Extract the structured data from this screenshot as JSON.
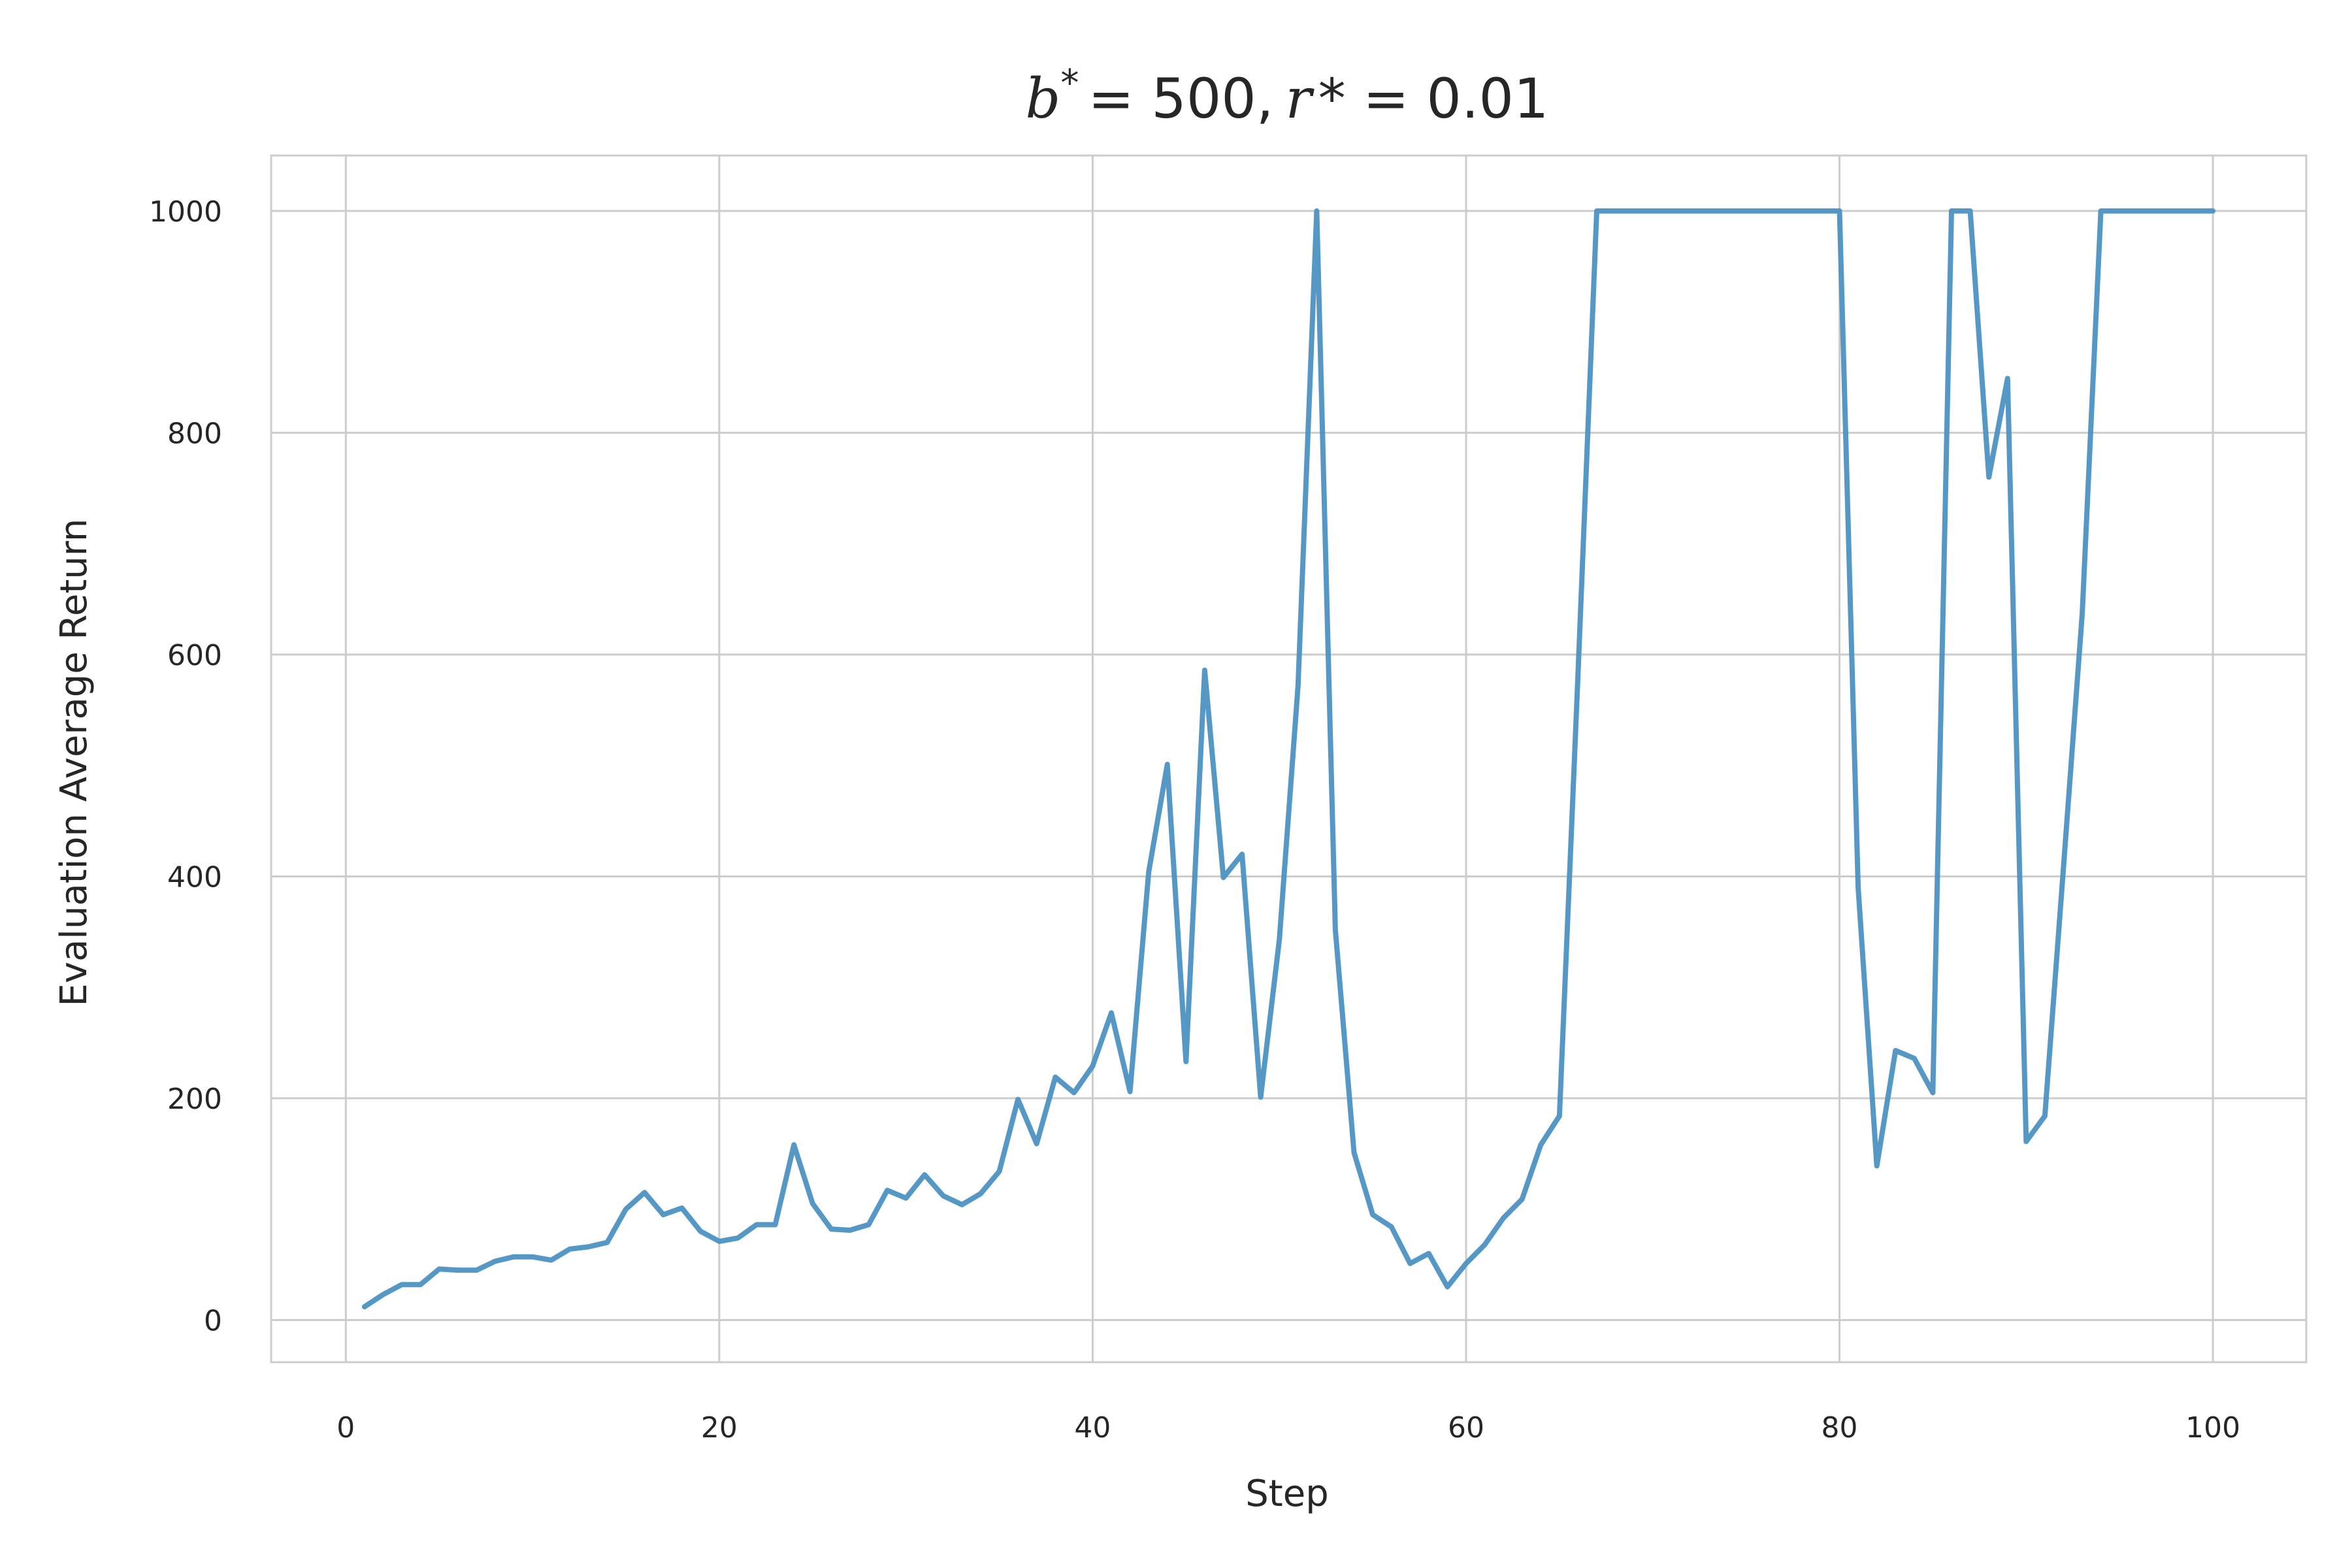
{
  "chart_data": {
    "type": "line",
    "title": {
      "b_symbol": "b",
      "b_superscript": "*",
      "b_value": "= 500,",
      "r_symbol": "r",
      "r_value": "* = 0.01"
    },
    "xlabel": "Step",
    "ylabel": "Evaluation Average Return",
    "xlim": [
      -4,
      105
    ],
    "ylim": [
      -38,
      1050
    ],
    "xticks": [
      0,
      20,
      40,
      60,
      80,
      100
    ],
    "yticks": [
      0,
      200,
      400,
      600,
      800,
      1000
    ],
    "grid": true,
    "line_color": "#4c92c3",
    "x": [
      1,
      2,
      3,
      4,
      5,
      6,
      7,
      8,
      9,
      10,
      11,
      12,
      13,
      14,
      15,
      16,
      17,
      18,
      19,
      20,
      21,
      22,
      23,
      24,
      25,
      26,
      27,
      28,
      29,
      30,
      31,
      32,
      33,
      34,
      35,
      36,
      37,
      38,
      39,
      40,
      41,
      42,
      43,
      44,
      45,
      46,
      47,
      48,
      49,
      50,
      51,
      52,
      53,
      54,
      55,
      56,
      57,
      58,
      59,
      60,
      61,
      62,
      63,
      64,
      65,
      66,
      67,
      68,
      69,
      70,
      71,
      72,
      73,
      74,
      75,
      76,
      77,
      78,
      79,
      80,
      81,
      82,
      83,
      84,
      85,
      86,
      87,
      88,
      89,
      90,
      91,
      92,
      93,
      94,
      95,
      96,
      97,
      98,
      99,
      100
    ],
    "values": [
      12,
      23,
      32,
      32,
      46,
      45,
      45,
      53,
      57,
      57,
      54,
      64,
      66,
      70,
      100,
      115,
      95,
      101,
      80,
      71,
      74,
      86,
      86,
      158,
      105,
      82,
      81,
      86,
      117,
      110,
      131,
      112,
      104,
      114,
      134,
      199,
      159,
      219,
      205,
      229,
      277,
      206,
      404,
      501,
      233,
      586,
      399,
      420,
      201,
      343,
      572,
      1000,
      352,
      151,
      95,
      84,
      51,
      60,
      30,
      51,
      68,
      92,
      109,
      158,
      184,
      585,
      1000,
      1000,
      1000,
      1000,
      1000,
      1000,
      1000,
      1000,
      1000,
      1000,
      1000,
      1000,
      1000,
      1000,
      390,
      139,
      243,
      236,
      205,
      1000,
      1000,
      760,
      849,
      161,
      184,
      409,
      637,
      1000,
      1000,
      1000,
      1000,
      1000,
      1000,
      1000
    ]
  }
}
